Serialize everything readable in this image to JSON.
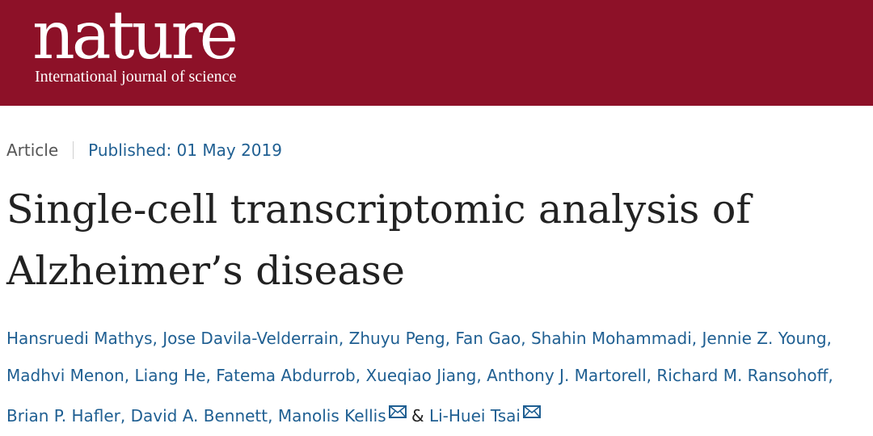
{
  "header": {
    "logo": "nature",
    "tagline": "International journal of science"
  },
  "article": {
    "type": "Article",
    "published": "Published: 01 May 2019",
    "title": "Single-cell transcriptomic analysis of Alzheimer’s disease"
  },
  "authors": [
    "Hansruedi Mathys",
    "Jose Davila-Velderrain",
    "Zhuyu Peng",
    "Fan Gao",
    "Shahin Mohammadi",
    "Jennie Z. Young",
    "Madhvi Menon",
    "Liang He",
    "Fatema Abdurrob",
    "Xueqiao Jiang",
    "Anthony J. Martorell",
    "Richard M. Ransohoff",
    "Brian P. Hafler",
    "David A. Bennett",
    "Manolis Kellis",
    "Li-Huei Tsai"
  ],
  "separators": {
    "comma": ", ",
    "ampersand": " & "
  },
  "icons": {
    "corresponding": "mail-icon"
  },
  "colors": {
    "masthead": "#8d1128",
    "link": "#1f5f92",
    "text": "#222222"
  }
}
